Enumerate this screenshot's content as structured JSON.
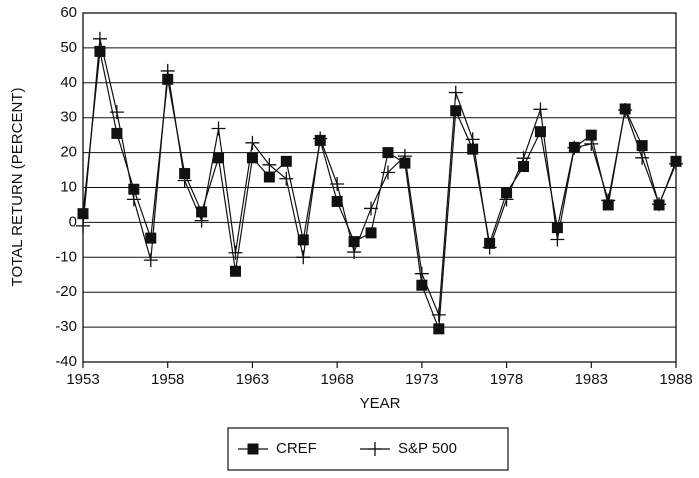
{
  "chart_data": {
    "type": "line",
    "x_label": "YEAR",
    "y_label": "TOTAL RETURN (PERCENT)",
    "x": [
      1953,
      1954,
      1955,
      1956,
      1957,
      1958,
      1959,
      1960,
      1961,
      1962,
      1963,
      1964,
      1965,
      1966,
      1967,
      1968,
      1969,
      1970,
      1971,
      1972,
      1973,
      1974,
      1975,
      1976,
      1977,
      1978,
      1979,
      1980,
      1981,
      1982,
      1983,
      1984,
      1985,
      1986,
      1987,
      1988
    ],
    "series": [
      {
        "name": "CREF",
        "color": "#111111",
        "marker": "square",
        "values": [
          2.5,
          49,
          25.5,
          9.5,
          -4.5,
          41,
          14,
          3,
          18.5,
          -14,
          18.5,
          13,
          17.5,
          -5,
          23.5,
          6,
          -5.5,
          -3,
          20,
          17,
          -18,
          -30.5,
          32,
          21,
          -6,
          8.5,
          16,
          26,
          -1.5,
          21.5,
          25,
          5,
          32.5,
          22,
          5,
          17.5
        ]
      },
      {
        "name": "S&P 500",
        "color": "#111111",
        "marker": "plus",
        "values": [
          -1,
          52.6,
          31.6,
          6.6,
          -10.8,
          43.4,
          12,
          0.5,
          26.9,
          -8.7,
          22.8,
          16.5,
          12.5,
          -10,
          24,
          11,
          -8.5,
          4,
          14.3,
          19,
          -14.7,
          -26.5,
          37.2,
          23.8,
          -7.2,
          6.6,
          18.4,
          32.4,
          -4.9,
          21.4,
          22.5,
          6.3,
          32.2,
          18.5,
          5.2,
          16.8
        ]
      }
    ],
    "xlim": [
      1953,
      1988
    ],
    "xticks": [
      1953,
      1958,
      1963,
      1968,
      1973,
      1978,
      1983,
      1988
    ],
    "ylim": [
      -40,
      60
    ],
    "yticks": [
      -40,
      -30,
      -20,
      -10,
      0,
      10,
      20,
      30,
      40,
      50,
      60
    ],
    "grid": true,
    "legend": "bottom"
  }
}
